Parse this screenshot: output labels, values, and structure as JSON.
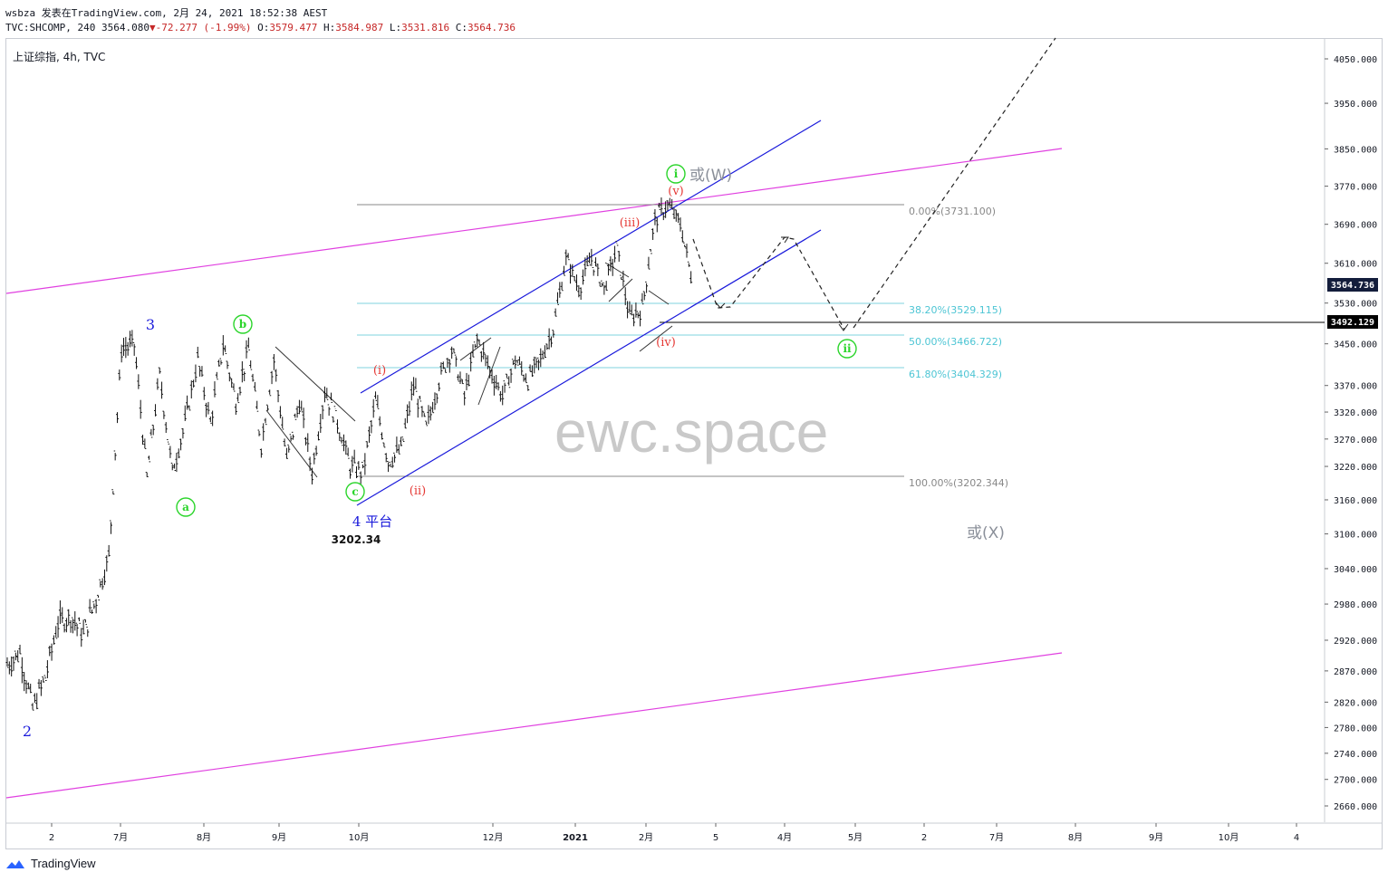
{
  "header": {
    "line1": "wsbza 发表在TradingView.com, 2月 24, 2021 18:52:38 AEST",
    "symbol": "TVC:SHCOMP, 240",
    "last": "3564.080",
    "change": "-72.277 (-1.99%)",
    "ohlc": {
      "o_label": "O:",
      "o": "3579.477",
      "h_label": "H:",
      "h": "3584.987",
      "l_label": "L:",
      "l": "3531.816",
      "c_label": "C:",
      "c": "3564.736"
    }
  },
  "chart_title": "上证综指, 4h, TVC",
  "watermark": "ewc.space",
  "brand": "TradingView",
  "colors": {
    "channel": "#1a1adb",
    "magenta": "#e040e0",
    "fib_line": "#7fd3df",
    "fib_text": "#4dc5d4",
    "green": "#2bd52b",
    "red": "#e53935",
    "blue_label": "#1a1adb",
    "price_tag_current": "#131d3b",
    "price_tag_level": "#000000"
  },
  "price_tags": {
    "current": "3564.736",
    "level": "3492.129"
  },
  "annotations": {
    "wave3": "3",
    "wave2": "2",
    "wave4": "4 平台",
    "low_value": "3202.34",
    "a": "a",
    "b": "b",
    "c": "c",
    "i_sub": "(i)",
    "ii_sub": "(ii)",
    "iii_sub": "(iii)",
    "iv_sub": "(iv)",
    "v_sub": "(v)",
    "i_main": "i",
    "ii_main": "ii",
    "alt_w": "或(W)",
    "alt_x": "或(X)"
  },
  "fib_labels": {
    "f0": "0.00%(3731.100)",
    "f382": "38.20%(3529.115)",
    "f50": "50.00%(3466.722)",
    "f618": "61.80%(3404.329)",
    "f100": "100.00%(3202.344)"
  },
  "chart_data": {
    "type": "line",
    "title": "上证综指, 4h, TVC",
    "x_ticks": [
      "2",
      "7月",
      "8月",
      "9月",
      "10月",
      "12月",
      "2021",
      "2月",
      "5",
      "4月",
      "5月",
      "2",
      "7月",
      "8月",
      "9月",
      "10月",
      "4"
    ],
    "y_ticks": [
      4050,
      3950,
      3850,
      3770,
      3690,
      3610,
      3530,
      3450,
      3370,
      3320,
      3270,
      3220,
      3160,
      3100,
      3040,
      2980,
      2920,
      2870,
      2820,
      2780,
      2740,
      2700,
      2660
    ],
    "y_tick_labels": [
      "4050.000",
      "3950.000",
      "3850.000",
      "3770.000",
      "3690.000",
      "3610.000",
      "3530.000",
      "3450.000",
      "3370.000",
      "3320.000",
      "3270.000",
      "3220.000",
      "3160.000",
      "3100.000",
      "3040.000",
      "2980.000",
      "2920.000",
      "2870.000",
      "2820.000",
      "2780.000",
      "2740.000",
      "2700.000",
      "2660.000"
    ],
    "ylim": [
      2630,
      4080
    ],
    "log_scale": true,
    "grid": false,
    "price_path": [
      [
        0,
        2880
      ],
      [
        1,
        2900
      ],
      [
        2,
        2810
      ],
      [
        3,
        2860
      ],
      [
        4,
        2950
      ],
      [
        5,
        2960
      ],
      [
        6,
        2930
      ],
      [
        7,
        2990
      ],
      [
        8,
        3060
      ],
      [
        9,
        3440
      ],
      [
        10,
        3450
      ],
      [
        11,
        3200
      ],
      [
        12,
        3390
      ],
      [
        13,
        3210
      ],
      [
        14,
        3300
      ],
      [
        15,
        3420
      ],
      [
        16,
        3300
      ],
      [
        17,
        3450
      ],
      [
        18,
        3340
      ],
      [
        19,
        3440
      ],
      [
        20,
        3260
      ],
      [
        21,
        3420
      ],
      [
        22,
        3230
      ],
      [
        23,
        3340
      ],
      [
        24,
        3210
      ],
      [
        25,
        3360
      ],
      [
        26,
        3302
      ],
      [
        27,
        3220
      ],
      [
        28,
        3210
      ],
      [
        29,
        3340
      ],
      [
        30,
        3230
      ],
      [
        31,
        3250
      ],
      [
        32,
        3370
      ],
      [
        33,
        3290
      ],
      [
        34,
        3380
      ],
      [
        35,
        3440
      ],
      [
        36,
        3350
      ],
      [
        37,
        3460
      ],
      [
        38,
        3400
      ],
      [
        39,
        3350
      ],
      [
        40,
        3420
      ],
      [
        41,
        3380
      ],
      [
        42,
        3420
      ],
      [
        43,
        3480
      ],
      [
        44,
        3620
      ],
      [
        45,
        3560
      ],
      [
        46,
        3620
      ],
      [
        47,
        3560
      ],
      [
        48,
        3640
      ],
      [
        49,
        3500
      ],
      [
        50,
        3520
      ],
      [
        51,
        3700
      ],
      [
        52,
        3731
      ],
      [
        53,
        3690
      ],
      [
        54,
        3564
      ]
    ],
    "fib_levels": [
      {
        "ratio": "0.00%",
        "price": 3731.1
      },
      {
        "ratio": "38.20%",
        "price": 3529.115
      },
      {
        "ratio": "50.00%",
        "price": 3466.722
      },
      {
        "ratio": "61.80%",
        "price": 3404.329
      },
      {
        "ratio": "100.00%",
        "price": 3202.344
      }
    ],
    "horizontal_level": 3492.129,
    "last_price": 3564.736
  }
}
